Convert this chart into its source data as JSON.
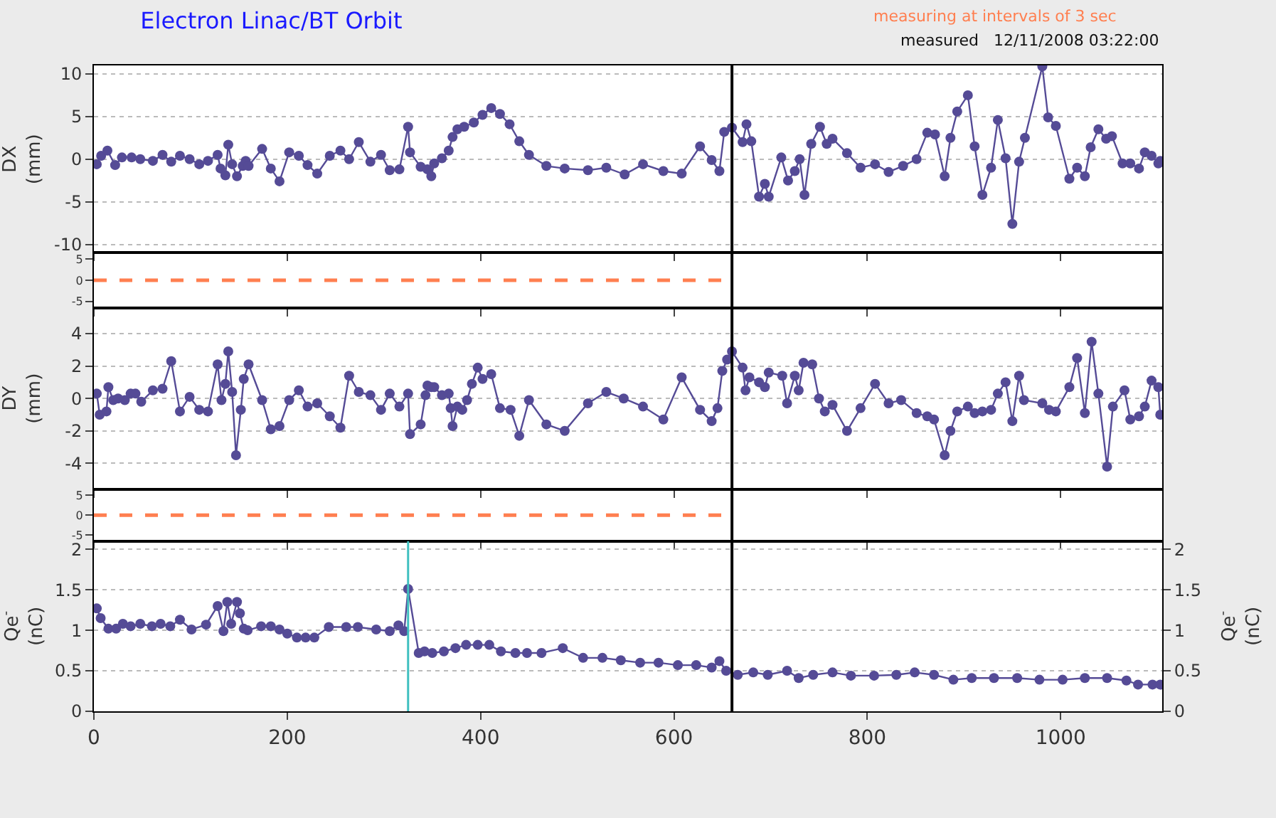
{
  "chart_data": [
    {
      "type": "line",
      "title": "Electron Linac/BT Orbit",
      "annotations": [
        "measuring at intervals of 3 sec",
        "measured   12/11/2008 03:22:00"
      ],
      "ylabel": "DX\n(mm)",
      "xlim": [
        0,
        1105
      ],
      "xticks": [
        0,
        200,
        400,
        600,
        800,
        1000
      ],
      "ylim": [
        -11,
        11
      ],
      "yticks": [
        -10,
        -5,
        0,
        5,
        10
      ],
      "tick_labels": "y",
      "grid": "y",
      "marker": "circle",
      "line_style": "solid",
      "ref_lines": [
        {
          "axis": "x",
          "value": 660,
          "color": "#000000"
        }
      ],
      "series": [
        {
          "color": "#554b96",
          "x": [
            3,
            7.5,
            14,
            22,
            29,
            39,
            48,
            61,
            71,
            80,
            89,
            99,
            109,
            118,
            128,
            131,
            136,
            139,
            143,
            148,
            154,
            157,
            160,
            174,
            183,
            192,
            202,
            212,
            221,
            231,
            244,
            255,
            264,
            274,
            286,
            297,
            306,
            316,
            325,
            327,
            338,
            345,
            349,
            352,
            360,
            367,
            371,
            376,
            383,
            393,
            402,
            411,
            420,
            430,
            440,
            450,
            468,
            487,
            511,
            530,
            549,
            568,
            589,
            608,
            627,
            639,
            647,
            652,
            660,
            671,
            675,
            680,
            688,
            694,
            698,
            711,
            718,
            725,
            730,
            735,
            742,
            751,
            758,
            764,
            779,
            793,
            808,
            822,
            837,
            851,
            862,
            870,
            880,
            886,
            893,
            904,
            911,
            919,
            928,
            935,
            943,
            950,
            957,
            963,
            981,
            987,
            995,
            1009,
            1017,
            1025,
            1031,
            1039,
            1047,
            1053,
            1064,
            1072,
            1081,
            1087,
            1094,
            1101,
            1103
          ],
          "values": [
            -0.6,
            0.4,
            1.0,
            -0.7,
            0.2,
            0.2,
            0,
            -0.2,
            0.5,
            -0.3,
            0.4,
            0,
            -0.6,
            -0.2,
            0.5,
            -1.1,
            -1.9,
            1.7,
            -0.6,
            -2.0,
            -0.8,
            -0.2,
            -0.8,
            1.2,
            -1.1,
            -2.6,
            0.8,
            0.4,
            -0.7,
            -1.7,
            0.4,
            1.0,
            0,
            2.0,
            -0.3,
            0.5,
            -1.3,
            -1.2,
            3.8,
            0.8,
            -0.9,
            -1.2,
            -2.0,
            -0.5,
            0.1,
            1.0,
            2.6,
            3.5,
            3.8,
            4.3,
            5.2,
            6.0,
            5.3,
            4.1,
            2.1,
            0.5,
            -0.8,
            -1.1,
            -1.3,
            -1.0,
            -1.8,
            -0.6,
            -1.4,
            -1.7,
            1.5,
            -0.1,
            -1.4,
            3.2,
            3.7,
            2.0,
            4.1,
            2.1,
            -4.4,
            -2.9,
            -4.4,
            0.2,
            -2.5,
            -1.4,
            0,
            -4.2,
            1.8,
            3.8,
            1.8,
            2.4,
            0.7,
            -1.0,
            -0.6,
            -1.5,
            -0.8,
            0,
            3.1,
            2.9,
            -2.0,
            2.5,
            5.6,
            7.5,
            1.5,
            -4.2,
            -1.0,
            4.6,
            0.1,
            -7.6,
            -0.3,
            2.5,
            10.9,
            4.9,
            3.9,
            -2.3,
            -1.0,
            -2.0,
            1.4,
            3.5,
            2.4,
            2.7,
            -0.5,
            -0.5,
            -1.1,
            0.8,
            0.4,
            -0.5,
            -0.2
          ]
        }
      ]
    },
    {
      "type": "line",
      "xlim": [
        0,
        1105
      ],
      "xticks": [
        0,
        200,
        400,
        600,
        800,
        1000
      ],
      "ylim": [
        -6.5,
        6.5
      ],
      "yticks": [
        -5,
        0,
        5
      ],
      "tick_labels": "y",
      "line_style": "dashed",
      "ref_lines": [
        {
          "axis": "x",
          "value": 660,
          "color": "#000000"
        }
      ],
      "series": [
        {
          "color": "#ff7f50",
          "x": [
            0,
            650
          ],
          "values": [
            0,
            0
          ]
        }
      ]
    },
    {
      "type": "line",
      "ylabel": "DY\n(mm)",
      "xlim": [
        0,
        1105
      ],
      "xticks": [
        0,
        200,
        400,
        600,
        800,
        1000
      ],
      "ylim": [
        -5.6,
        5.6
      ],
      "yticks": [
        -4,
        -2,
        0,
        2,
        4
      ],
      "tick_labels": "y",
      "grid": "y",
      "marker": "circle",
      "line_style": "solid",
      "ref_lines": [
        {
          "axis": "x",
          "value": 660,
          "color": "#000000"
        }
      ],
      "series": [
        {
          "color": "#554b96",
          "x": [
            3,
            6,
            13,
            15,
            20,
            25,
            32,
            38,
            43,
            49,
            61,
            71,
            80,
            89,
            99,
            109,
            118,
            128,
            132,
            136,
            139,
            143,
            147,
            152,
            155,
            160,
            174,
            183,
            192,
            202,
            212,
            221,
            231,
            244,
            255,
            264,
            274,
            286,
            297,
            306,
            316,
            325,
            327,
            338,
            343,
            345,
            349,
            352,
            360,
            367,
            369,
            371,
            376,
            381,
            386,
            391,
            397,
            402,
            411,
            420,
            431,
            440,
            450,
            468,
            487,
            511,
            530,
            548,
            568,
            589,
            608,
            627,
            639,
            645,
            650,
            655,
            660,
            671,
            674,
            678,
            688,
            694,
            698,
            712,
            717,
            725,
            729,
            734,
            743,
            750,
            756,
            764,
            779,
            793,
            808,
            822,
            835,
            851,
            862,
            869,
            880,
            886,
            893,
            904,
            911,
            919,
            928,
            935,
            943,
            950,
            957,
            962,
            981,
            988,
            995,
            1009,
            1017,
            1025,
            1032,
            1039,
            1048,
            1054,
            1066,
            1072,
            1081,
            1087,
            1094,
            1101,
            1103
          ],
          "values": [
            0.3,
            -1.0,
            -0.8,
            0.7,
            -0.1,
            0,
            -0.1,
            0.3,
            0.3,
            -0.2,
            0.5,
            0.6,
            2.3,
            -0.8,
            0.1,
            -0.7,
            -0.8,
            2.1,
            -0.1,
            0.9,
            2.9,
            0.4,
            -3.5,
            -0.7,
            1.2,
            2.1,
            -0.1,
            -1.9,
            -1.7,
            -0.1,
            0.5,
            -0.5,
            -0.3,
            -1.1,
            -1.8,
            1.4,
            0.4,
            0.2,
            -0.7,
            0.3,
            -0.5,
            0.3,
            -2.2,
            -1.6,
            0.2,
            0.8,
            0.7,
            0.7,
            0.2,
            0.3,
            -0.6,
            -1.7,
            -0.5,
            -0.7,
            -0.1,
            0.9,
            1.9,
            1.2,
            1.5,
            -0.6,
            -0.7,
            -2.3,
            -0.1,
            -1.6,
            -2.0,
            -0.3,
            0.4,
            0,
            -0.5,
            -1.3,
            1.3,
            -0.7,
            -1.4,
            -0.6,
            1.7,
            2.4,
            2.9,
            1.9,
            0.5,
            1.3,
            1.0,
            0.7,
            1.6,
            1.4,
            -0.3,
            1.4,
            0.5,
            2.2,
            2.1,
            0,
            -0.8,
            -0.4,
            -2.0,
            -0.6,
            0.9,
            -0.3,
            -0.1,
            -0.9,
            -1.1,
            -1.3,
            -3.5,
            -2.0,
            -0.8,
            -0.5,
            -0.9,
            -0.8,
            -0.7,
            0.3,
            1.0,
            -1.4,
            1.4,
            -0.1,
            -0.3,
            -0.7,
            -0.8,
            0.7,
            2.5,
            -0.9,
            3.5,
            0.3,
            -4.2,
            -0.5,
            0.5,
            -1.3,
            -1.1,
            -0.5,
            1.1,
            0.7,
            -1.0
          ]
        }
      ]
    },
    {
      "type": "line",
      "xlim": [
        0,
        1105
      ],
      "xticks": [
        0,
        200,
        400,
        600,
        800,
        1000
      ],
      "ylim": [
        -6.5,
        6.5
      ],
      "yticks": [
        -5,
        0,
        5
      ],
      "tick_labels": "y",
      "line_style": "dashed",
      "ref_lines": [
        {
          "axis": "x",
          "value": 660,
          "color": "#000000"
        }
      ],
      "series": [
        {
          "color": "#ff7f50",
          "x": [
            0,
            650
          ],
          "values": [
            0,
            0
          ]
        }
      ]
    },
    {
      "type": "line",
      "ylabel": "Qe$^{-}$\n(nC)",
      "y2label": "Qe$^{-}$\n(nC)",
      "xlim": [
        0,
        1105
      ],
      "xticks": [
        0,
        200,
        400,
        600,
        800,
        1000
      ],
      "ylim": [
        0,
        2.1
      ],
      "yticks": [
        0,
        0.5,
        1,
        1.5,
        2
      ],
      "y2lim": [
        0,
        2.1
      ],
      "y2ticks": [
        0,
        0.5,
        1,
        1.5,
        2
      ],
      "grid": "y",
      "marker": "circle",
      "line_style": "solid",
      "ref_lines": [
        {
          "axis": "x",
          "value": 660,
          "color": "#000000"
        },
        {
          "axis": "x",
          "value": 325,
          "color": "#40c0c0"
        }
      ],
      "series": [
        {
          "color": "#554b96",
          "x": [
            3,
            7,
            15,
            23,
            30,
            38,
            48,
            60,
            69,
            79,
            89,
            101,
            116,
            128,
            134,
            138,
            142,
            148,
            151,
            155,
            159,
            173,
            183,
            192,
            200,
            210,
            219,
            228,
            243,
            261,
            273,
            292,
            306,
            315,
            321,
            325,
            336,
            342,
            350,
            362,
            374,
            385,
            397,
            409,
            421,
            436,
            448,
            463,
            485,
            506,
            526,
            545,
            565,
            584,
            604,
            623,
            639,
            647,
            654,
            666,
            682,
            697,
            717,
            729,
            744,
            764,
            783,
            807,
            830,
            849,
            869,
            889,
            908,
            931,
            955,
            978,
            1002,
            1025,
            1048,
            1068,
            1080,
            1095,
            1103
          ],
          "values": [
            1.27,
            1.15,
            1.02,
            1.02,
            1.08,
            1.05,
            1.08,
            1.05,
            1.08,
            1.05,
            1.13,
            1.01,
            1.07,
            1.3,
            0.99,
            1.35,
            1.08,
            1.35,
            1.21,
            1.02,
            1.0,
            1.05,
            1.05,
            1.01,
            0.96,
            0.91,
            0.91,
            0.91,
            1.04,
            1.04,
            1.04,
            1.01,
            0.99,
            1.06,
            0.99,
            1.51,
            0.72,
            0.74,
            0.72,
            0.74,
            0.78,
            0.82,
            0.82,
            0.82,
            0.74,
            0.72,
            0.72,
            0.72,
            0.78,
            0.66,
            0.66,
            0.63,
            0.6,
            0.6,
            0.57,
            0.57,
            0.54,
            0.62,
            0.5,
            0.45,
            0.48,
            0.45,
            0.5,
            0.41,
            0.45,
            0.48,
            0.44,
            0.44,
            0.45,
            0.48,
            0.45,
            0.39,
            0.41,
            0.41,
            0.41,
            0.39,
            0.39,
            0.41,
            0.41,
            0.38,
            0.33,
            0.33,
            0.33
          ]
        }
      ]
    }
  ]
}
